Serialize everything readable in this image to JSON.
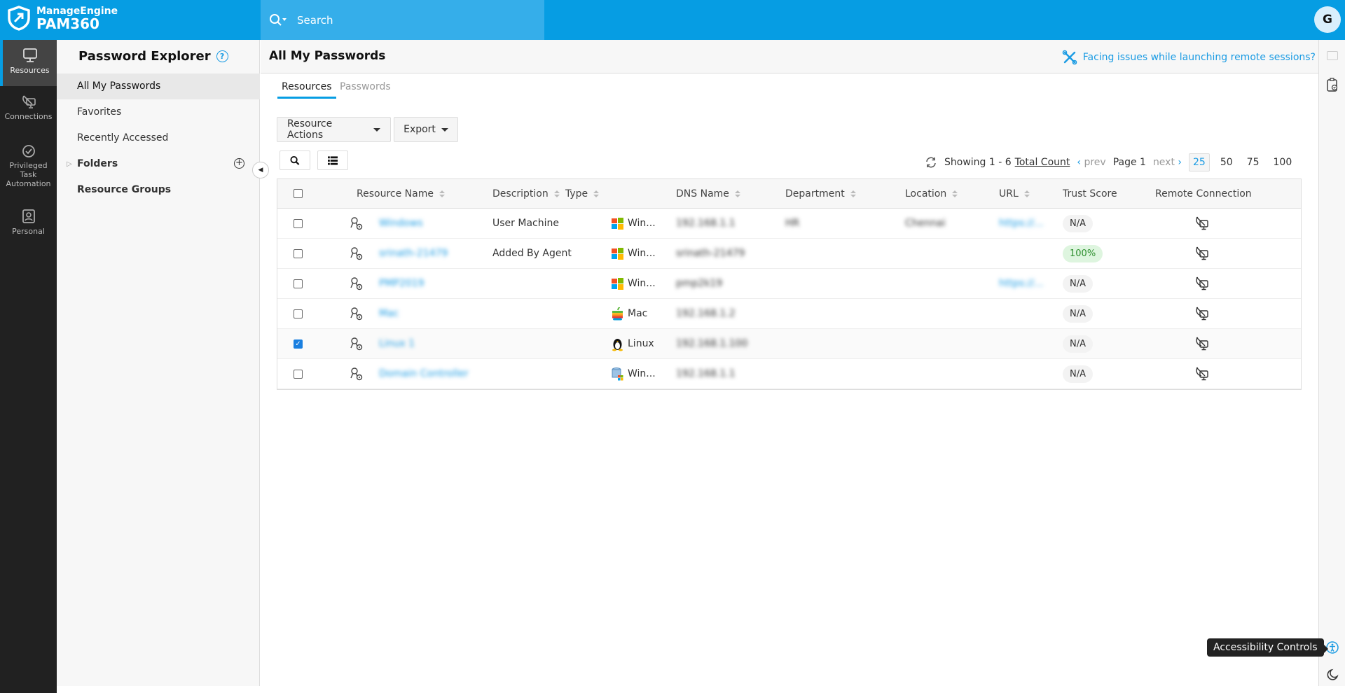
{
  "header": {
    "brand_top": "ManageEngine",
    "brand_name": "PAM360",
    "search_placeholder": "Search",
    "avatar_initial": "G"
  },
  "leftnav": [
    {
      "label": "Resources",
      "icon": "monitor-icon",
      "active": true
    },
    {
      "label": "Connections",
      "icon": "satellite-dish-icon"
    },
    {
      "label_lines": [
        "Privileged",
        "Task",
        "Automation"
      ],
      "icon": "task-check-icon"
    },
    {
      "label": "Personal",
      "icon": "personal-badge-icon"
    }
  ],
  "explorer": {
    "title": "Password Explorer",
    "items": [
      {
        "label": "All My Passwords",
        "active": true
      },
      {
        "label": "Favorites"
      },
      {
        "label": "Recently Accessed"
      },
      {
        "label": "Folders"
      },
      {
        "label": "Resource Groups"
      }
    ]
  },
  "main": {
    "title": "All My Passwords",
    "help_link": "Facing issues while launching remote sessions?",
    "tabs": [
      {
        "label": "Resources",
        "active": true
      },
      {
        "label": "Passwords"
      }
    ],
    "actions": {
      "resource_actions": "Resource Actions",
      "export": "Export"
    },
    "pager": {
      "showing": "Showing 1 - 6",
      "total_count": "Total Count",
      "prev": "prev",
      "page": "Page 1",
      "next": "next",
      "sizes": [
        "25",
        "50",
        "75",
        "100"
      ],
      "selected_size": "25"
    },
    "columns": [
      "Resource Name",
      "Description",
      "Type",
      "DNS Name",
      "Department",
      "Location",
      "URL",
      "Trust Score",
      "Remote Connection"
    ],
    "rows": [
      {
        "checked": false,
        "name": "Windows",
        "description": "User Machine",
        "type": "Win...",
        "type_icon": "windows",
        "dns": "192.168.1.1",
        "department": "HR",
        "location": "Chennai",
        "url": "https://...",
        "trust": "N/A"
      },
      {
        "checked": false,
        "name": "srinath-21479",
        "description": "Added By Agent",
        "type": "Win...",
        "type_icon": "windows",
        "dns": "srinath-21479",
        "department": "",
        "location": "",
        "url": "",
        "trust": "100%"
      },
      {
        "checked": false,
        "name": "PMP2019",
        "description": "",
        "type": "Win...",
        "type_icon": "windows",
        "dns": "pmp2k19",
        "department": "",
        "location": "",
        "url": "https://...",
        "trust": "N/A"
      },
      {
        "checked": false,
        "name": "Mac",
        "description": "",
        "type": "Mac",
        "type_icon": "apple",
        "dns": "192.168.1.2",
        "department": "",
        "location": "",
        "url": "",
        "trust": "N/A"
      },
      {
        "checked": true,
        "name": "Linux 1",
        "description": "",
        "type": "Linux",
        "type_icon": "linux",
        "dns": "192.168.1.100",
        "department": "",
        "location": "",
        "url": "",
        "trust": "N/A"
      },
      {
        "checked": false,
        "name": "Domain Controller",
        "description": "",
        "type": "Win...",
        "type_icon": "domain-controller",
        "dns": "192.168.1.1",
        "department": "",
        "location": "",
        "url": "",
        "trust": "N/A"
      }
    ]
  },
  "tooltip": "Accessibility Controls",
  "colors": {
    "brand": "#069de3",
    "search_bg": "#35aeea",
    "nav_bg": "#212121",
    "link": "#1a9be3",
    "trust_good": "#2e8f2e"
  }
}
